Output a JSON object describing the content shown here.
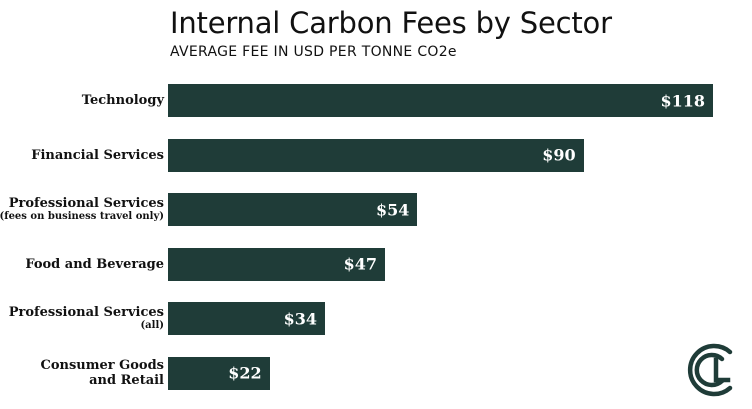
{
  "chart_data": {
    "type": "bar",
    "orientation": "horizontal",
    "title": "Internal Carbon Fees by Sector",
    "subtitle": "AVERAGE FEE IN USD PER TONNE CO2e",
    "categories": [
      {
        "line1": "Technology",
        "line2": ""
      },
      {
        "line1": "Financial Services",
        "line2": ""
      },
      {
        "line1": "Professional Services",
        "line2": "(fees on business travel only)"
      },
      {
        "line1": "Food and Beverage",
        "line2": ""
      },
      {
        "line1": "Professional Services",
        "line2": "(all)"
      },
      {
        "line1": "Consumer Goods",
        "line2": "and Retail"
      }
    ],
    "values": [
      118,
      90,
      54,
      47,
      34,
      22
    ],
    "value_labels": [
      "$118",
      "$90",
      "$54",
      "$47",
      "$34",
      "$22"
    ],
    "xlim": [
      0,
      118
    ],
    "grid": false,
    "bar_color": "#1f3c38"
  },
  "logo": {
    "icon": "cl-logo-icon",
    "color": "#1f3c38"
  }
}
